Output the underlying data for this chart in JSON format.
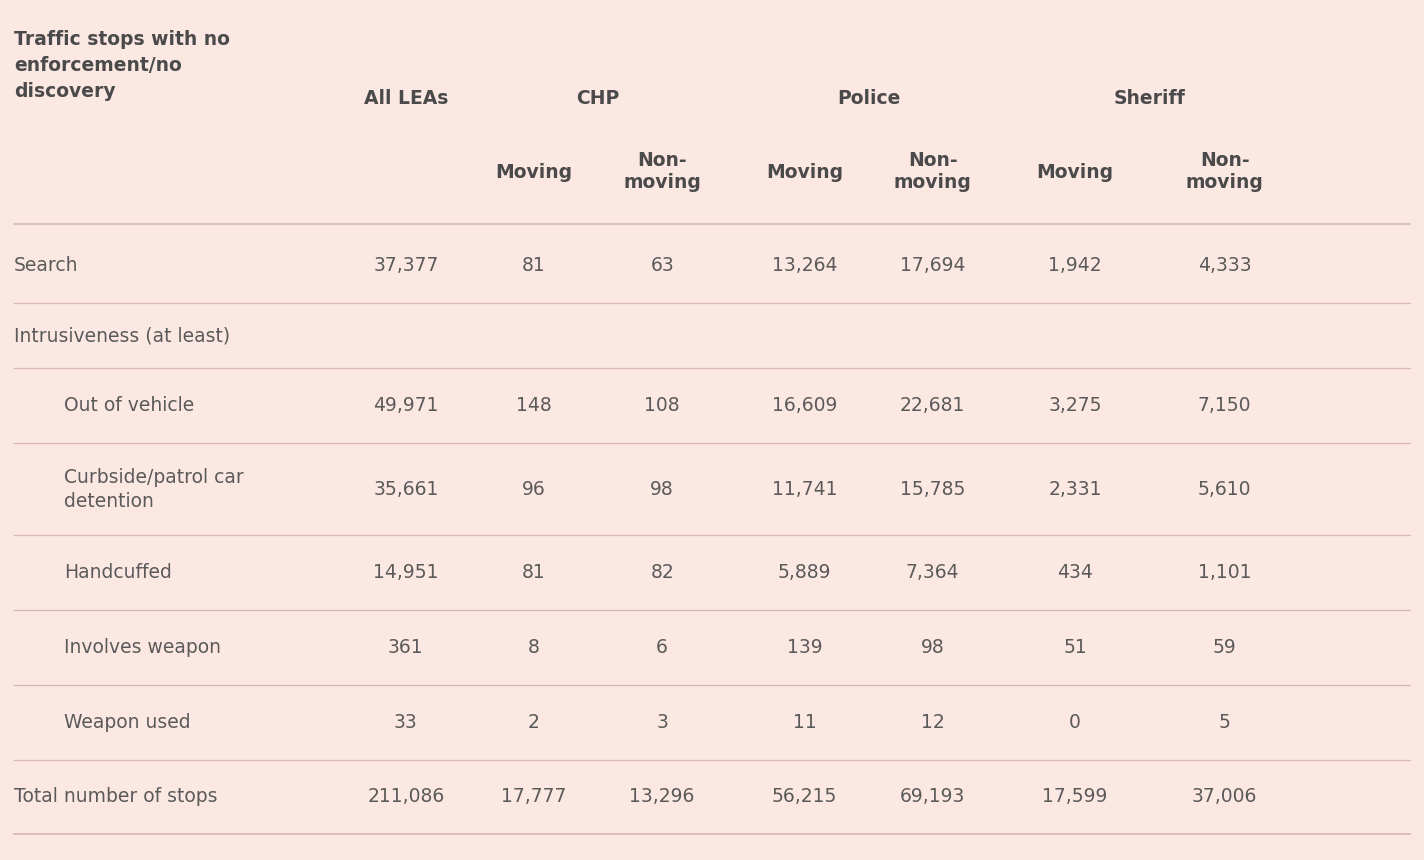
{
  "background_color": "#fce8e3",
  "title_text": "Traffic stops with no\nenforcement/no\ndiscovery",
  "rows": [
    {
      "label": "Search",
      "indent": 0,
      "values": [
        "37,377",
        "81",
        "63",
        "13,264",
        "17,694",
        "1,942",
        "4,333"
      ],
      "is_section_header": false,
      "is_total": false
    },
    {
      "label": "Intrusiveness (at least)",
      "indent": 0,
      "values": [
        "",
        "",
        "",
        "",
        "",
        "",
        ""
      ],
      "is_section_header": true,
      "is_total": false
    },
    {
      "label": "Out of vehicle",
      "indent": 1,
      "values": [
        "49,971",
        "148",
        "108",
        "16,609",
        "22,681",
        "3,275",
        "7,150"
      ],
      "is_section_header": false,
      "is_total": false
    },
    {
      "label": "Curbside/patrol car\ndetention",
      "indent": 1,
      "values": [
        "35,661",
        "96",
        "98",
        "11,741",
        "15,785",
        "2,331",
        "5,610"
      ],
      "is_section_header": false,
      "is_total": false
    },
    {
      "label": "Handcuffed",
      "indent": 1,
      "values": [
        "14,951",
        "81",
        "82",
        "5,889",
        "7,364",
        "434",
        "1,101"
      ],
      "is_section_header": false,
      "is_total": false
    },
    {
      "label": "Involves weapon",
      "indent": 1,
      "values": [
        "361",
        "8",
        "6",
        "139",
        "98",
        "51",
        "59"
      ],
      "is_section_header": false,
      "is_total": false
    },
    {
      "label": "Weapon used",
      "indent": 1,
      "values": [
        "33",
        "2",
        "3",
        "11",
        "12",
        "0",
        "5"
      ],
      "is_section_header": false,
      "is_total": false
    },
    {
      "label": "Total number of stops",
      "indent": 0,
      "values": [
        "211,086",
        "17,777",
        "13,296",
        "56,215",
        "69,193",
        "17,599",
        "37,006"
      ],
      "is_section_header": false,
      "is_total": true
    }
  ],
  "text_color": "#5a5a5a",
  "header_text_color": "#4a4a4a",
  "line_color": "#d9b8b4",
  "title_fontsize": 13.5,
  "header_fontsize": 13.5,
  "data_fontsize": 13.5
}
